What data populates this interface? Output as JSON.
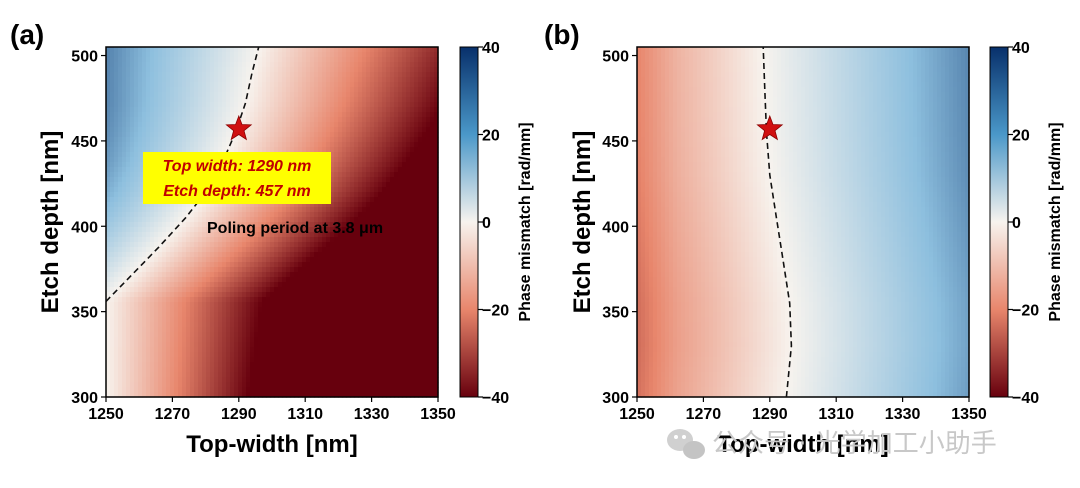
{
  "colors": {
    "neg_strong": "#67000d",
    "neg_mid": "#e8866c",
    "zero": "#f7f3ee",
    "pos_mid": "#8dbfde",
    "pos_strong": "#08306b",
    "star": "#d01010",
    "annotation_bg": "#ffff00",
    "annotation_text": "#c00000"
  },
  "chart_data": [
    {
      "type": "heatmap",
      "panel": "(a)",
      "xlabel": "Top-width [nm]",
      "ylabel": "Etch depth [nm]",
      "xlim": [
        1250,
        1350
      ],
      "ylim": [
        300,
        505
      ],
      "xticks": [
        "1250",
        "1270",
        "1290",
        "1310",
        "1330",
        "1350"
      ],
      "yticks": [
        "300",
        "350",
        "400",
        "450",
        "500"
      ],
      "colorbar": {
        "label": "Phase mismatch [rad/mm]",
        "range": [
          -40,
          40
        ],
        "ticks": [
          "40",
          "20",
          "0",
          "−20",
          "−40"
        ]
      },
      "contour_zero": {
        "x": [
          1250,
          1258,
          1266,
          1274,
          1280,
          1285,
          1289,
          1292,
          1294,
          1296
        ],
        "y": [
          356,
          372,
          388,
          405,
          420,
          437,
          455,
          472,
          490,
          505
        ]
      },
      "marker": {
        "x": 1290,
        "y": 457,
        "shape": "star"
      },
      "annotation": [
        "Top width: 1290 nm",
        "Etch depth: 457 nm"
      ],
      "note": "Poling period at 3.8 μm",
      "model": {
        "contour_slope_nm_per_nm": 0.5,
        "gain": 0.62,
        "depth_decay": 0.05
      }
    },
    {
      "type": "heatmap",
      "panel": "(b)",
      "xlabel": "Top-width [nm]",
      "ylabel": "Etch depth [nm]",
      "xlim": [
        1250,
        1350
      ],
      "ylim": [
        300,
        505
      ],
      "xticks": [
        "1250",
        "1270",
        "1290",
        "1310",
        "1330",
        "1350"
      ],
      "yticks": [
        "300",
        "350",
        "400",
        "450",
        "500"
      ],
      "colorbar": {
        "label": "Phase mismatch [rad/mm]",
        "range": [
          -40,
          40
        ],
        "ticks": [
          "40",
          "20",
          "0",
          "−20",
          "−40"
        ]
      },
      "contour_zero": {
        "x": [
          1295,
          1296.5,
          1296,
          1294,
          1292,
          1290,
          1289,
          1288.5,
          1288
        ],
        "y": [
          300,
          330,
          355,
          380,
          405,
          430,
          455,
          480,
          505
        ]
      },
      "marker": {
        "x": 1290,
        "y": 457,
        "shape": "star"
      },
      "model": {
        "gain": 0.45
      }
    }
  ],
  "watermark": "公众号 · 光学加工小助手"
}
